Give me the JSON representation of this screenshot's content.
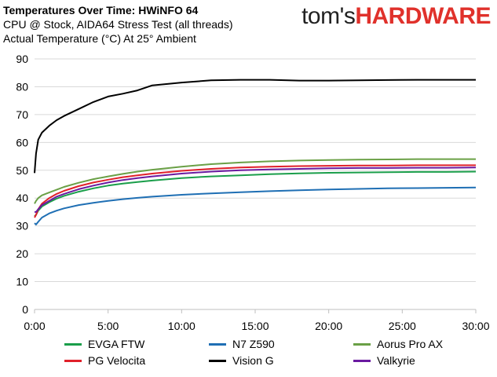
{
  "header": {
    "title": "Temperatures Over Time: HWiNFO 64",
    "subtitle1": "CPU @ Stock, AIDA64 Stress Test (all threads)",
    "subtitle2": "Actual Temperature (°C) At 25° Ambient"
  },
  "logo": {
    "part1": "tom's",
    "part2": "HARDWARE"
  },
  "chart_data": {
    "type": "line",
    "title": "Temperatures Over Time: HWiNFO 64",
    "subtitle": "CPU @ Stock, AIDA64 Stress Test (all threads)",
    "ylabel": "Actual Temperature (°C) At 25° Ambient",
    "xlabel": "",
    "xlim": [
      0,
      30
    ],
    "ylim": [
      0,
      90
    ],
    "x_ticks": [
      "0:00",
      "5:00",
      "10:00",
      "15:00",
      "20:00",
      "25:00",
      "30:00"
    ],
    "y_ticks": [
      0,
      10,
      20,
      30,
      40,
      50,
      60,
      70,
      80,
      90
    ],
    "grid": "horizontal",
    "legend_position": "bottom",
    "x": [
      0,
      0.1,
      0.25,
      0.5,
      1,
      1.5,
      2,
      3,
      4,
      5,
      6,
      7,
      8,
      10,
      12,
      14,
      16,
      18,
      20,
      22,
      24,
      26,
      28,
      30
    ],
    "series": [
      {
        "name": "EVGA FTW",
        "color": "#1a9e4a",
        "values": [
          33.5,
          34,
          35.5,
          37,
          38.5,
          39.8,
          40.8,
          42.3,
          43.5,
          44.5,
          45.2,
          45.8,
          46.3,
          47.2,
          47.8,
          48.2,
          48.6,
          48.9,
          49.1,
          49.2,
          49.3,
          49.4,
          49.4,
          49.5
        ]
      },
      {
        "name": "N7 Z590",
        "color": "#1f6fb4",
        "values": [
          31,
          30.5,
          31.5,
          33,
          34.5,
          35.5,
          36.3,
          37.5,
          38.3,
          39,
          39.6,
          40.1,
          40.5,
          41.2,
          41.7,
          42.1,
          42.5,
          42.8,
          43.1,
          43.3,
          43.5,
          43.6,
          43.7,
          43.8
        ]
      },
      {
        "name": "Aorus Pro AX",
        "color": "#6aa046",
        "values": [
          38,
          39,
          40,
          41,
          42,
          43,
          44,
          45.5,
          46.8,
          47.8,
          48.7,
          49.5,
          50.2,
          51.3,
          52.2,
          52.8,
          53.2,
          53.5,
          53.7,
          53.8,
          53.9,
          54,
          54,
          54
        ]
      },
      {
        "name": "PG Velocita",
        "color": "#e0202a",
        "values": [
          33,
          34,
          36,
          38,
          40,
          41.5,
          42.6,
          44.3,
          45.6,
          46.6,
          47.5,
          48.2,
          48.8,
          49.8,
          50.5,
          51,
          51.3,
          51.5,
          51.6,
          51.7,
          51.7,
          51.8,
          51.8,
          51.8
        ]
      },
      {
        "name": "Vision G",
        "color": "#000000",
        "values": [
          49,
          56,
          61,
          63.5,
          66,
          68,
          69.5,
          72,
          74.5,
          76.5,
          77.5,
          78.7,
          80.5,
          81.5,
          82.3,
          82.5,
          82.5,
          82.2,
          82.2,
          82.3,
          82.4,
          82.5,
          82.5,
          82.5
        ]
      },
      {
        "name": "Valkyrie",
        "color": "#6a1aa0",
        "values": [
          35,
          35,
          36,
          37.5,
          39,
          40.5,
          41.5,
          43.2,
          44.5,
          45.6,
          46.5,
          47.2,
          47.8,
          48.8,
          49.5,
          50,
          50.3,
          50.5,
          50.7,
          50.8,
          50.8,
          50.9,
          50.9,
          51
        ]
      }
    ]
  }
}
